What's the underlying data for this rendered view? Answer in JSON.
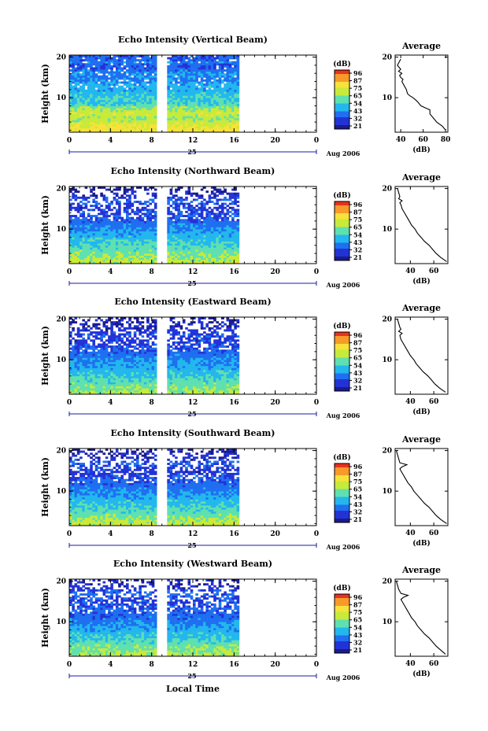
{
  "colors": {
    "scale": [
      "#1a1a8c",
      "#2233d6",
      "#1f6ff0",
      "#23b7ee",
      "#5fe0b0",
      "#c8ea3a",
      "#f7e23a",
      "#f79a2a",
      "#e8321e"
    ],
    "axis": "#000000",
    "day_axis": "#1a1aa8"
  },
  "colorbar": {
    "unit": "(dB)",
    "ticks": [
      "96",
      "87",
      "75",
      "65",
      "54",
      "43",
      "32",
      "21"
    ]
  },
  "xaxis": {
    "ticks": [
      "0",
      "4",
      "8",
      "12",
      "16",
      "20",
      "0"
    ],
    "day": "25",
    "month_year": "Aug 2006",
    "label": "Local Time"
  },
  "chart_data": [
    {
      "type": "heatmap",
      "title": "Echo Intensity (Vertical Beam)",
      "ylabel": "Height (km)",
      "yticks": [
        "20",
        "10"
      ],
      "xlim": [
        0,
        24
      ],
      "ylim": [
        1.5,
        20.5
      ],
      "data_hours": [
        [
          0,
          8.5
        ],
        [
          9.5,
          16.5
        ]
      ],
      "level_profile": [
        [
          2,
          80
        ],
        [
          3,
          76
        ],
        [
          4,
          70
        ],
        [
          5,
          66
        ],
        [
          6,
          72
        ],
        [
          7,
          68
        ],
        [
          8,
          60
        ],
        [
          9,
          54
        ],
        [
          10,
          56
        ],
        [
          11,
          52
        ],
        [
          12,
          48
        ],
        [
          13,
          50
        ],
        [
          14,
          44
        ],
        [
          15,
          42
        ],
        [
          16,
          46
        ],
        [
          17,
          38
        ],
        [
          18,
          36
        ],
        [
          19,
          44
        ],
        [
          20,
          40
        ]
      ]
    },
    {
      "type": "heatmap",
      "title": "Echo Intensity (Northward Beam)",
      "ylabel": "Height (km)",
      "yticks": [
        "20",
        "10"
      ],
      "xlim": [
        0,
        24
      ],
      "ylim": [
        1.5,
        20.5
      ],
      "data_hours": [
        [
          0,
          8.5
        ],
        [
          9.5,
          16.5
        ]
      ],
      "level_profile": [
        [
          2,
          70
        ],
        [
          3,
          66
        ],
        [
          4,
          62
        ],
        [
          5,
          60
        ],
        [
          6,
          56
        ],
        [
          7,
          54
        ],
        [
          8,
          50
        ],
        [
          9,
          48
        ],
        [
          10,
          44
        ],
        [
          11,
          42
        ],
        [
          12,
          38
        ],
        [
          13,
          36
        ],
        [
          14,
          34
        ],
        [
          15,
          30
        ],
        [
          16,
          32
        ],
        [
          17,
          40
        ],
        [
          18,
          28
        ],
        [
          19,
          24
        ],
        [
          20,
          22
        ]
      ]
    },
    {
      "type": "heatmap",
      "title": "Echo Intensity (Eastward Beam)",
      "ylabel": "Height (km)",
      "yticks": [
        "20",
        "10"
      ],
      "xlim": [
        0,
        24
      ],
      "ylim": [
        1.5,
        20.5
      ],
      "data_hours": [
        [
          0,
          8.5
        ],
        [
          9.5,
          16.5
        ]
      ],
      "level_profile": [
        [
          2,
          68
        ],
        [
          3,
          64
        ],
        [
          4,
          60
        ],
        [
          5,
          58
        ],
        [
          6,
          54
        ],
        [
          7,
          52
        ],
        [
          8,
          48
        ],
        [
          9,
          46
        ],
        [
          10,
          44
        ],
        [
          11,
          40
        ],
        [
          12,
          38
        ],
        [
          13,
          34
        ],
        [
          14,
          32
        ],
        [
          15,
          30
        ],
        [
          16,
          36
        ],
        [
          17,
          30
        ],
        [
          18,
          26
        ],
        [
          19,
          24
        ],
        [
          20,
          22
        ]
      ]
    },
    {
      "type": "heatmap",
      "title": "Echo Intensity (Southward Beam)",
      "ylabel": "Height (km)",
      "yticks": [
        "20",
        "10"
      ],
      "xlim": [
        0,
        24
      ],
      "ylim": [
        1.5,
        20.5
      ],
      "data_hours": [
        [
          0,
          8.5
        ],
        [
          9.5,
          16.5
        ]
      ],
      "level_profile": [
        [
          2,
          70
        ],
        [
          3,
          66
        ],
        [
          4,
          62
        ],
        [
          5,
          58
        ],
        [
          6,
          56
        ],
        [
          7,
          52
        ],
        [
          8,
          50
        ],
        [
          9,
          46
        ],
        [
          10,
          44
        ],
        [
          11,
          40
        ],
        [
          12,
          38
        ],
        [
          13,
          36
        ],
        [
          14,
          32
        ],
        [
          15,
          30
        ],
        [
          16,
          34
        ],
        [
          17,
          38
        ],
        [
          18,
          28
        ],
        [
          19,
          26
        ],
        [
          20,
          24
        ]
      ]
    },
    {
      "type": "heatmap",
      "title": "Echo Intensity (Westward Beam)",
      "ylabel": "Height (km)",
      "yticks": [
        "20",
        "10"
      ],
      "xlim": [
        0,
        24
      ],
      "ylim": [
        1.5,
        20.5
      ],
      "data_hours": [
        [
          0,
          8.5
        ],
        [
          9.5,
          16.5
        ]
      ],
      "level_profile": [
        [
          2,
          68
        ],
        [
          3,
          64
        ],
        [
          4,
          62
        ],
        [
          5,
          58
        ],
        [
          6,
          54
        ],
        [
          7,
          52
        ],
        [
          8,
          48
        ],
        [
          9,
          46
        ],
        [
          10,
          42
        ],
        [
          11,
          40
        ],
        [
          12,
          38
        ],
        [
          13,
          36
        ],
        [
          14,
          34
        ],
        [
          15,
          32
        ],
        [
          16,
          36
        ],
        [
          17,
          40
        ],
        [
          18,
          30
        ],
        [
          19,
          26
        ],
        [
          20,
          24
        ]
      ]
    },
    {
      "type": "line",
      "title": "Average",
      "xlabel": "(dB)",
      "xticks": [
        40,
        60,
        80
      ],
      "xlim": [
        35,
        82
      ],
      "ylim": [
        1.5,
        20.5
      ],
      "yticks": [
        20,
        10
      ],
      "x": [
        80,
        77,
        72,
        69,
        66,
        66,
        62,
        58,
        55,
        53,
        51,
        48,
        46,
        45,
        43,
        41,
        42,
        40,
        39,
        41,
        38,
        40,
        37,
        40
      ],
      "y": [
        2,
        3,
        4,
        5,
        6,
        7,
        7.5,
        8,
        9,
        9.5,
        10,
        10.5,
        11,
        12,
        13,
        14,
        14.5,
        15,
        15.5,
        16,
        16.5,
        17,
        18,
        19.5
      ]
    },
    {
      "type": "line",
      "title": "Average",
      "xlabel": "(dB)",
      "xticks": [
        40,
        60
      ],
      "xlim": [
        27,
        72
      ],
      "ylim": [
        1.5,
        20.5
      ],
      "yticks": [
        20,
        10
      ],
      "x": [
        71,
        66,
        62,
        59,
        56,
        52,
        49,
        46,
        44,
        41,
        39,
        37,
        35,
        33,
        32,
        31,
        33,
        30,
        31,
        30,
        29
      ],
      "y": [
        2,
        3,
        4,
        5,
        6,
        7,
        8,
        9,
        10,
        11,
        12,
        13,
        14,
        15,
        16,
        16.5,
        17,
        17.5,
        18,
        19,
        20
      ]
    },
    {
      "type": "line",
      "title": "Average",
      "xlabel": "(dB)",
      "xticks": [
        40,
        60
      ],
      "xlim": [
        27,
        72
      ],
      "ylim": [
        1.5,
        20.5
      ],
      "yticks": [
        20,
        10
      ],
      "x": [
        70,
        65,
        61,
        58,
        55,
        51,
        48,
        45,
        43,
        40,
        38,
        36,
        34,
        32,
        31,
        33,
        30,
        32,
        31,
        30,
        29
      ],
      "y": [
        2,
        3,
        4,
        5,
        6,
        7,
        8,
        9,
        10,
        11,
        12,
        13,
        14,
        15,
        16,
        16.5,
        17,
        17.5,
        18,
        19,
        20
      ]
    },
    {
      "type": "line",
      "title": "Average",
      "xlabel": "(dB)",
      "xticks": [
        40,
        60
      ],
      "xlim": [
        27,
        72
      ],
      "ylim": [
        1.5,
        20.5
      ],
      "yticks": [
        20,
        10
      ],
      "x": [
        71,
        66,
        62,
        59,
        56,
        52,
        49,
        46,
        43,
        41,
        38,
        36,
        34,
        32,
        31,
        33,
        37,
        31,
        30,
        29,
        28
      ],
      "y": [
        2,
        3,
        4,
        5,
        6,
        7,
        8,
        9,
        10,
        11,
        12,
        13,
        14,
        15,
        15.5,
        16,
        16.5,
        17,
        18,
        19,
        20
      ]
    },
    {
      "type": "line",
      "title": "Average",
      "xlabel": "(dB)",
      "xticks": [
        40,
        60
      ],
      "xlim": [
        27,
        72
      ],
      "ylim": [
        1.5,
        20.5
      ],
      "yticks": [
        20,
        10
      ],
      "x": [
        70,
        66,
        62,
        59,
        56,
        52,
        49,
        46,
        44,
        41,
        39,
        37,
        35,
        33,
        32,
        34,
        38,
        32,
        30,
        29,
        28
      ],
      "y": [
        2,
        3,
        4,
        5,
        6,
        7,
        8,
        9,
        10,
        11,
        12,
        13,
        14,
        15,
        15.5,
        16,
        16.5,
        17,
        18,
        19,
        20
      ]
    }
  ]
}
